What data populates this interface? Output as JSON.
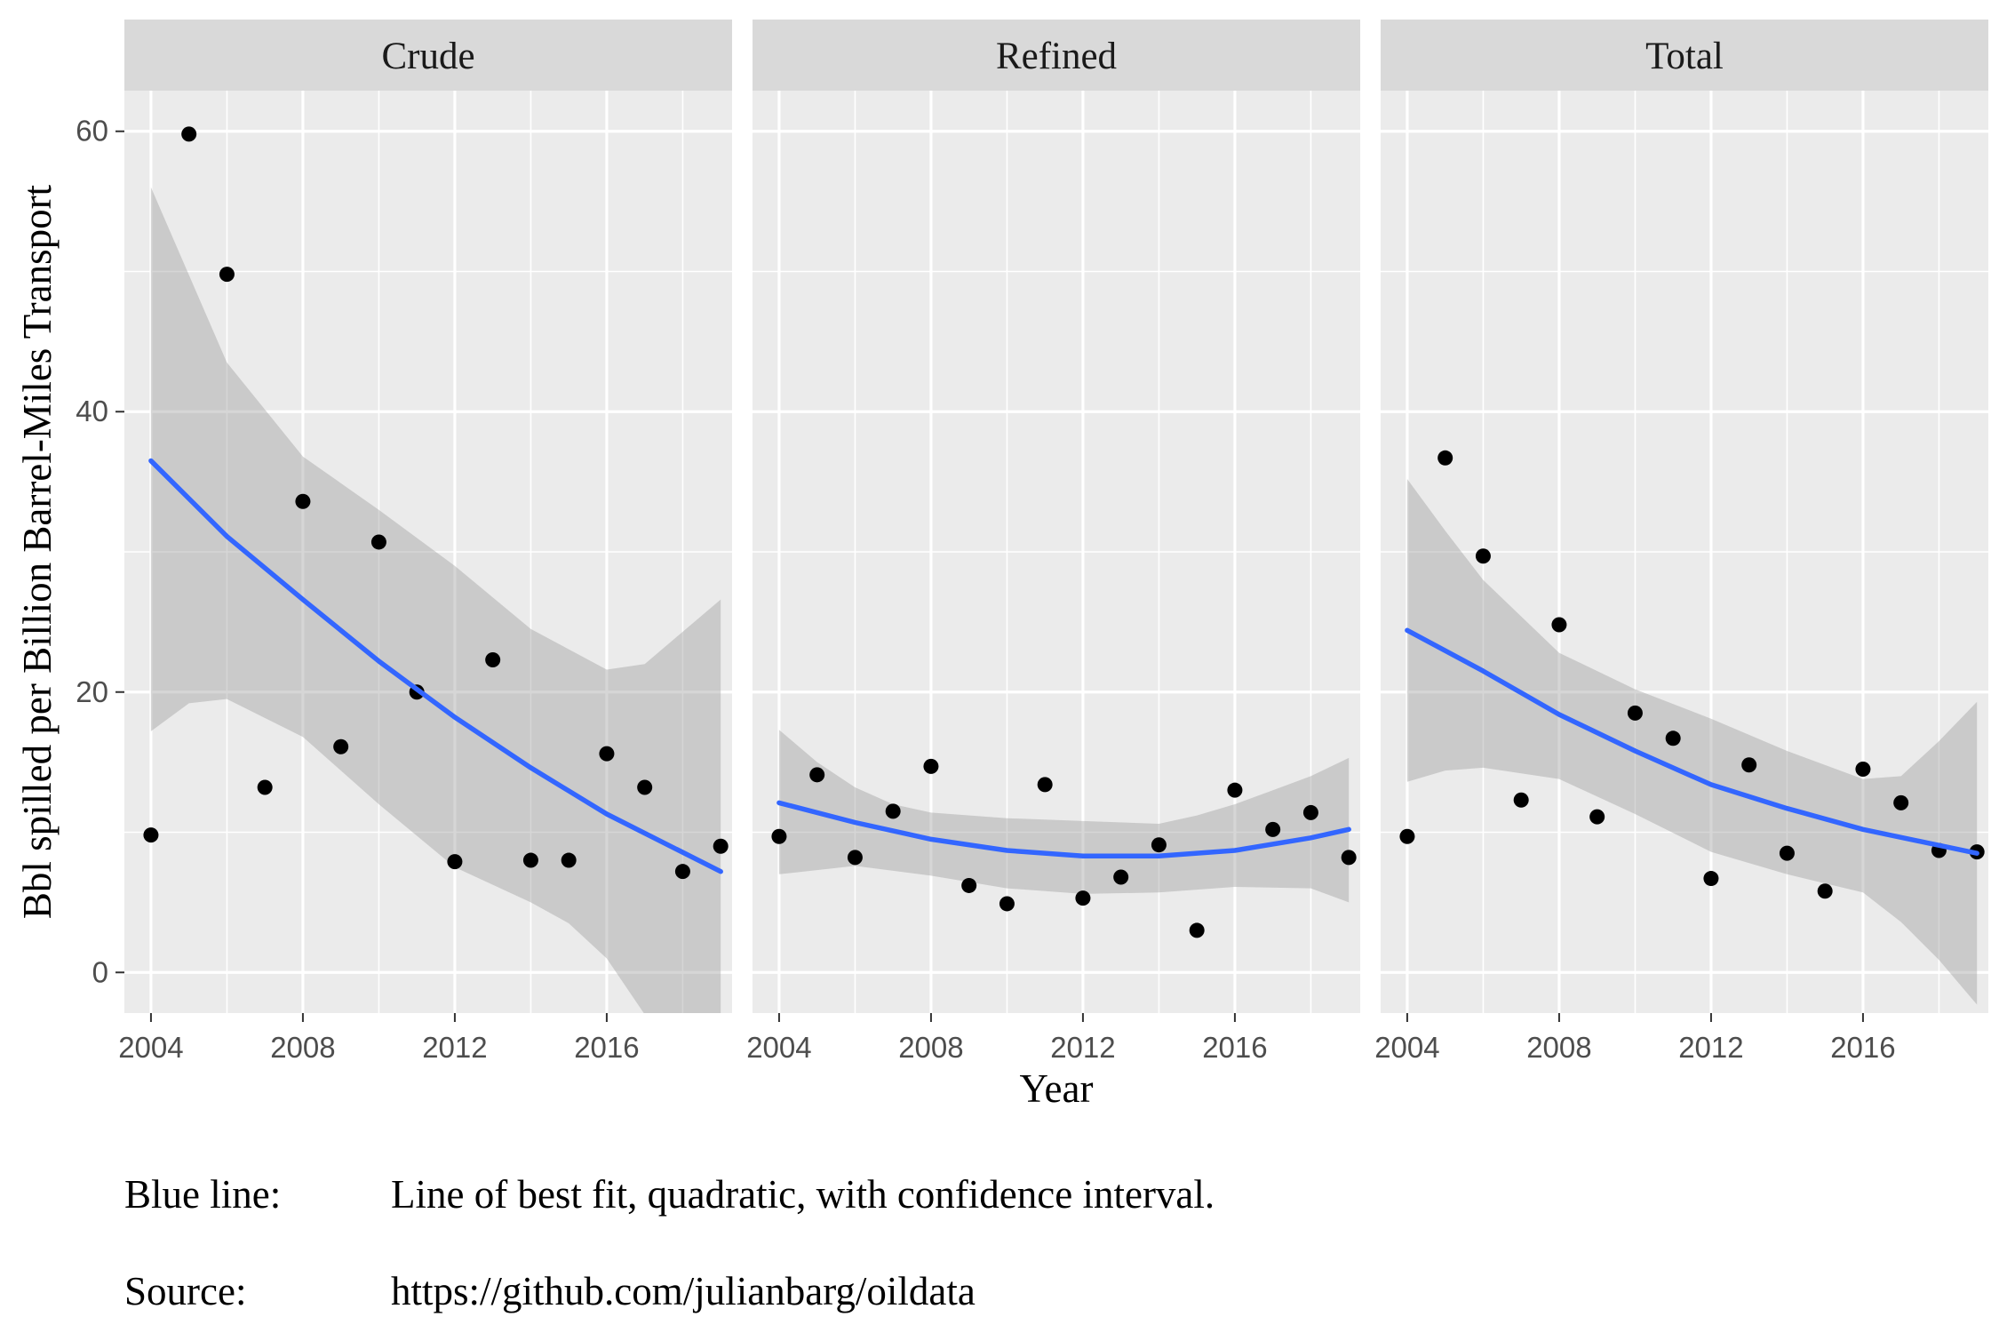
{
  "chart_data": {
    "type": "scatter",
    "facets": [
      {
        "label": "Crude",
        "points": [
          [
            2004,
            9.8
          ],
          [
            2005,
            59.8
          ],
          [
            2006,
            49.8
          ],
          [
            2007,
            13.2
          ],
          [
            2008,
            33.6
          ],
          [
            2009,
            16.1
          ],
          [
            2010,
            30.7
          ],
          [
            2011,
            20.0
          ],
          [
            2012,
            7.9
          ],
          [
            2013,
            22.3
          ],
          [
            2014,
            8.0
          ],
          [
            2015,
            8.0
          ],
          [
            2016,
            15.6
          ],
          [
            2017,
            13.2
          ],
          [
            2018,
            7.2
          ],
          [
            2019,
            9.0
          ]
        ],
        "fit": [
          [
            2004,
            36.5
          ],
          [
            2006,
            31.1
          ],
          [
            2008,
            26.6
          ],
          [
            2010,
            22.2
          ],
          [
            2012,
            18.2
          ],
          [
            2014,
            14.6
          ],
          [
            2016,
            11.3
          ],
          [
            2019,
            7.2
          ]
        ],
        "ci_upper": [
          [
            2004,
            56.0
          ],
          [
            2006,
            43.5
          ],
          [
            2008,
            36.8
          ],
          [
            2010,
            33.0
          ],
          [
            2012,
            29.0
          ],
          [
            2014,
            24.5
          ],
          [
            2016,
            21.6
          ],
          [
            2017,
            22.0
          ],
          [
            2019,
            26.6
          ]
        ],
        "ci_lower": [
          [
            2004,
            17.2
          ],
          [
            2005,
            19.2
          ],
          [
            2006,
            19.5
          ],
          [
            2008,
            16.8
          ],
          [
            2010,
            12.0
          ],
          [
            2012,
            7.5
          ],
          [
            2014,
            5.0
          ],
          [
            2015,
            3.5
          ],
          [
            2016,
            1.0
          ],
          [
            2017,
            -3.0
          ],
          [
            2018,
            -7.0
          ],
          [
            2019,
            -12.5
          ]
        ]
      },
      {
        "label": "Refined",
        "points": [
          [
            2004,
            9.7
          ],
          [
            2005,
            14.1
          ],
          [
            2006,
            8.2
          ],
          [
            2007,
            11.5
          ],
          [
            2008,
            14.7
          ],
          [
            2009,
            6.2
          ],
          [
            2010,
            4.9
          ],
          [
            2011,
            13.4
          ],
          [
            2012,
            5.3
          ],
          [
            2013,
            6.8
          ],
          [
            2014,
            9.1
          ],
          [
            2015,
            3.0
          ],
          [
            2016,
            13.0
          ],
          [
            2017,
            10.2
          ],
          [
            2018,
            11.4
          ],
          [
            2019,
            8.2
          ]
        ],
        "fit": [
          [
            2004,
            12.1
          ],
          [
            2006,
            10.7
          ],
          [
            2008,
            9.5
          ],
          [
            2010,
            8.7
          ],
          [
            2012,
            8.3
          ],
          [
            2014,
            8.3
          ],
          [
            2016,
            8.7
          ],
          [
            2018,
            9.6
          ],
          [
            2019,
            10.2
          ]
        ],
        "ci_upper": [
          [
            2004,
            17.3
          ],
          [
            2005,
            15.0
          ],
          [
            2006,
            13.2
          ],
          [
            2007,
            12.0
          ],
          [
            2008,
            11.4
          ],
          [
            2010,
            11.0
          ],
          [
            2012,
            10.8
          ],
          [
            2014,
            10.6
          ],
          [
            2015,
            11.2
          ],
          [
            2016,
            12.0
          ],
          [
            2017,
            13.0
          ],
          [
            2018,
            14.0
          ],
          [
            2019,
            15.3
          ]
        ],
        "ci_lower": [
          [
            2004,
            7.0
          ],
          [
            2006,
            7.6
          ],
          [
            2008,
            6.9
          ],
          [
            2010,
            6.0
          ],
          [
            2012,
            5.6
          ],
          [
            2014,
            5.7
          ],
          [
            2016,
            6.1
          ],
          [
            2018,
            6.0
          ],
          [
            2019,
            5.0
          ]
        ]
      },
      {
        "label": "Total",
        "points": [
          [
            2004,
            9.7
          ],
          [
            2005,
            36.7
          ],
          [
            2006,
            29.7
          ],
          [
            2007,
            12.3
          ],
          [
            2008,
            24.8
          ],
          [
            2009,
            11.1
          ],
          [
            2010,
            18.5
          ],
          [
            2011,
            16.7
          ],
          [
            2012,
            6.7
          ],
          [
            2013,
            14.8
          ],
          [
            2014,
            8.5
          ],
          [
            2015,
            5.8
          ],
          [
            2016,
            14.5
          ],
          [
            2017,
            12.1
          ],
          [
            2018,
            8.7
          ],
          [
            2019,
            8.6
          ]
        ],
        "fit": [
          [
            2004,
            24.4
          ],
          [
            2006,
            21.5
          ],
          [
            2008,
            18.4
          ],
          [
            2010,
            15.8
          ],
          [
            2012,
            13.4
          ],
          [
            2014,
            11.7
          ],
          [
            2016,
            10.2
          ],
          [
            2019,
            8.5
          ]
        ],
        "ci_upper": [
          [
            2004,
            35.2
          ],
          [
            2005,
            31.5
          ],
          [
            2006,
            28.0
          ],
          [
            2008,
            22.8
          ],
          [
            2010,
            20.2
          ],
          [
            2012,
            18.1
          ],
          [
            2014,
            15.8
          ],
          [
            2016,
            13.8
          ],
          [
            2017,
            14.0
          ],
          [
            2018,
            16.5
          ],
          [
            2019,
            19.3
          ]
        ],
        "ci_lower": [
          [
            2004,
            13.6
          ],
          [
            2005,
            14.4
          ],
          [
            2006,
            14.6
          ],
          [
            2008,
            13.8
          ],
          [
            2010,
            11.3
          ],
          [
            2012,
            8.6
          ],
          [
            2014,
            7.0
          ],
          [
            2016,
            5.7
          ],
          [
            2017,
            3.6
          ],
          [
            2018,
            0.9
          ],
          [
            2019,
            -2.3
          ]
        ]
      }
    ],
    "x_ticks": [
      "2004",
      "2008",
      "2012",
      "2016"
    ],
    "y_ticks": [
      "0",
      "20",
      "40",
      "60"
    ],
    "xlim": [
      2003.3,
      2019.3
    ],
    "ylim": [
      -2.9,
      62.9
    ],
    "xlabel": "Year",
    "ylabel": "Bbl spilled per Billion Barrel-Miles Transport",
    "grid": true,
    "colors": {
      "panel_bg": "#ebebeb",
      "strip_bg": "#d9d9d9",
      "grid": "#ffffff",
      "point": "#000000",
      "fit_line": "#3366ff",
      "ci_band": "#999999"
    }
  },
  "notes": [
    {
      "key": "Blue line:",
      "value": "Line of best fit, quadratic, with confidence interval."
    },
    {
      "key": "Source:",
      "value": "https://github.com/julianbarg/oildata"
    }
  ]
}
